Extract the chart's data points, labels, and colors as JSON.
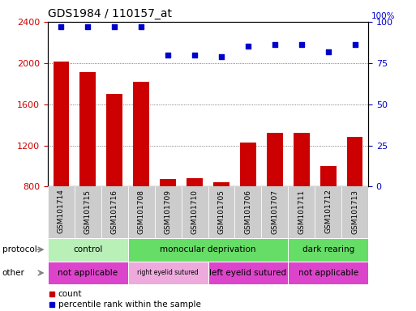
{
  "title": "GDS1984 / 110157_at",
  "samples": [
    "GSM101714",
    "GSM101715",
    "GSM101716",
    "GSM101708",
    "GSM101709",
    "GSM101710",
    "GSM101705",
    "GSM101706",
    "GSM101707",
    "GSM101711",
    "GSM101712",
    "GSM101713"
  ],
  "counts": [
    2010,
    1910,
    1700,
    1820,
    870,
    880,
    840,
    1230,
    1320,
    1320,
    1000,
    1280
  ],
  "percentiles": [
    97,
    97,
    97,
    97,
    80,
    80,
    79,
    85,
    86,
    86,
    82,
    86
  ],
  "ylim_left": [
    800,
    2400
  ],
  "ylim_right": [
    0,
    100
  ],
  "yticks_left": [
    800,
    1200,
    1600,
    2000,
    2400
  ],
  "yticks_right": [
    0,
    25,
    50,
    75,
    100
  ],
  "bar_color": "#cc0000",
  "dot_color": "#0000cc",
  "protocol_data": [
    {
      "label": "control",
      "start": 0,
      "end": 3,
      "color": "#b8f0b8"
    },
    {
      "label": "monocular deprivation",
      "start": 3,
      "end": 9,
      "color": "#66dd66"
    },
    {
      "label": "dark rearing",
      "start": 9,
      "end": 12,
      "color": "#66dd66"
    }
  ],
  "other_data": [
    {
      "label": "not applicable",
      "start": 0,
      "end": 3,
      "color": "#dd44cc"
    },
    {
      "label": "right eyelid sutured",
      "start": 3,
      "end": 6,
      "color": "#eeaadd"
    },
    {
      "label": "left eyelid sutured",
      "start": 6,
      "end": 9,
      "color": "#dd44cc"
    },
    {
      "label": "not applicable",
      "start": 9,
      "end": 12,
      "color": "#dd44cc"
    }
  ],
  "legend_count_color": "#cc0000",
  "legend_pct_color": "#0000cc",
  "background_color": "#ffffff",
  "plot_bg_color": "#ffffff",
  "grid_color": "#555555",
  "tick_label_bg": "#cccccc"
}
